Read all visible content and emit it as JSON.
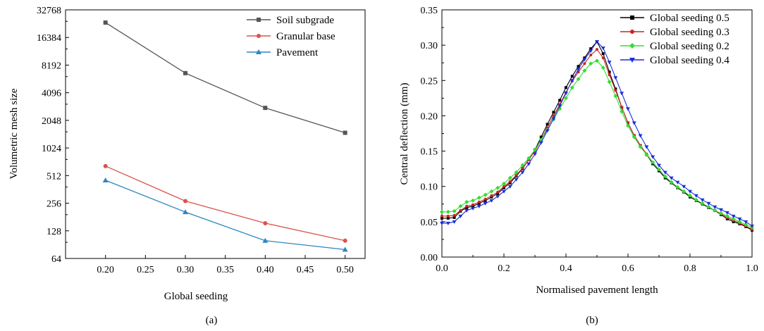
{
  "chart_data": [
    {
      "type": "line",
      "caption": "(a)",
      "xlabel": "Global seeding",
      "ylabel": "Volumetric mesh size",
      "xlim": [
        0.15,
        0.525
      ],
      "ylim": [
        64,
        32768
      ],
      "yscale": "log2",
      "grid": false,
      "legend_position": "top-right",
      "x_ticks": [
        "0.20",
        "0.25",
        "0.30",
        "0.35",
        "0.40",
        "0.45",
        "0.50"
      ],
      "x_tick_values": [
        0.2,
        0.25,
        0.3,
        0.35,
        0.4,
        0.45,
        0.5
      ],
      "y_ticks": [
        "64",
        "128",
        "256",
        "512",
        "1024",
        "2048",
        "4096",
        "8192",
        "16384",
        "32768"
      ],
      "y_tick_values": [
        64,
        128,
        256,
        512,
        1024,
        2048,
        4096,
        8192,
        16384,
        32768
      ],
      "x": [
        0.2,
        0.3,
        0.4,
        0.5
      ],
      "series": [
        {
          "name": "Soil subgrade",
          "color": "#555555",
          "marker": "square",
          "values": [
            23800,
            6700,
            2800,
            1500
          ]
        },
        {
          "name": "Granular base",
          "color": "#d9534f",
          "marker": "circle",
          "values": [
            650,
            270,
            155,
            100
          ]
        },
        {
          "name": "Pavement",
          "color": "#2e86c1",
          "marker": "triangle",
          "values": [
            455,
            205,
            100,
            80
          ]
        }
      ]
    },
    {
      "type": "line",
      "caption": "(b)",
      "xlabel": "Normalised pavement length",
      "ylabel": "Central deflection (mm)",
      "xlim": [
        0,
        1
      ],
      "ylim": [
        0,
        0.35
      ],
      "grid": false,
      "legend_position": "top-right",
      "x_ticks": [
        "0.0",
        "0.2",
        "0.4",
        "0.6",
        "0.8",
        "1.0"
      ],
      "x_tick_values": [
        0,
        0.2,
        0.4,
        0.6,
        0.8,
        1.0
      ],
      "y_ticks": [
        "0.00",
        "0.05",
        "0.10",
        "0.15",
        "0.20",
        "0.25",
        "0.30",
        "0.35"
      ],
      "y_tick_values": [
        0,
        0.05,
        0.1,
        0.15,
        0.2,
        0.25,
        0.3,
        0.35
      ],
      "series": [
        {
          "name": "Global seeding 0.5",
          "color": "#000000",
          "marker": "square",
          "x": [
            0.0,
            0.02,
            0.04,
            0.06,
            0.08,
            0.1,
            0.12,
            0.14,
            0.16,
            0.18,
            0.2,
            0.22,
            0.24,
            0.26,
            0.28,
            0.3,
            0.32,
            0.34,
            0.36,
            0.38,
            0.4,
            0.42,
            0.44,
            0.46,
            0.48,
            0.5,
            0.52,
            0.54,
            0.56,
            0.58,
            0.6,
            0.62,
            0.64,
            0.66,
            0.68,
            0.7,
            0.72,
            0.74,
            0.76,
            0.78,
            0.8,
            0.82,
            0.84,
            0.86,
            0.88,
            0.9,
            0.92,
            0.94,
            0.96,
            0.98,
            1.0
          ],
          "values": [
            0.055,
            0.055,
            0.056,
            0.065,
            0.07,
            0.072,
            0.076,
            0.08,
            0.085,
            0.09,
            0.098,
            0.105,
            0.115,
            0.125,
            0.138,
            0.152,
            0.17,
            0.188,
            0.205,
            0.222,
            0.24,
            0.256,
            0.27,
            0.282,
            0.295,
            0.305,
            0.288,
            0.262,
            0.238,
            0.212,
            0.19,
            0.172,
            0.158,
            0.145,
            0.132,
            0.122,
            0.112,
            0.105,
            0.098,
            0.092,
            0.085,
            0.08,
            0.075,
            0.07,
            0.066,
            0.06,
            0.054,
            0.05,
            0.047,
            0.043,
            0.038
          ]
        },
        {
          "name": "Global seeding 0.3",
          "color": "#cc2222",
          "marker": "circle",
          "x": [
            0.0,
            0.02,
            0.04,
            0.06,
            0.08,
            0.1,
            0.12,
            0.14,
            0.16,
            0.18,
            0.2,
            0.22,
            0.24,
            0.26,
            0.28,
            0.3,
            0.32,
            0.34,
            0.36,
            0.38,
            0.4,
            0.42,
            0.44,
            0.46,
            0.48,
            0.5,
            0.52,
            0.54,
            0.56,
            0.58,
            0.6,
            0.62,
            0.64,
            0.66,
            0.68,
            0.7,
            0.72,
            0.74,
            0.76,
            0.78,
            0.8,
            0.82,
            0.84,
            0.86,
            0.88,
            0.9,
            0.92,
            0.94,
            0.96,
            0.98,
            1.0
          ],
          "values": [
            0.058,
            0.058,
            0.059,
            0.066,
            0.072,
            0.074,
            0.078,
            0.082,
            0.087,
            0.092,
            0.1,
            0.107,
            0.116,
            0.126,
            0.138,
            0.15,
            0.166,
            0.183,
            0.2,
            0.216,
            0.233,
            0.249,
            0.262,
            0.274,
            0.286,
            0.294,
            0.282,
            0.258,
            0.236,
            0.212,
            0.19,
            0.172,
            0.158,
            0.146,
            0.134,
            0.124,
            0.114,
            0.106,
            0.099,
            0.093,
            0.087,
            0.081,
            0.076,
            0.071,
            0.066,
            0.061,
            0.056,
            0.052,
            0.048,
            0.044,
            0.039
          ]
        },
        {
          "name": "Global seeding 0.2",
          "color": "#33dd33",
          "marker": "diamond",
          "x": [
            0.0,
            0.02,
            0.04,
            0.06,
            0.08,
            0.1,
            0.12,
            0.14,
            0.16,
            0.18,
            0.2,
            0.22,
            0.24,
            0.26,
            0.28,
            0.3,
            0.32,
            0.34,
            0.36,
            0.38,
            0.4,
            0.42,
            0.44,
            0.46,
            0.48,
            0.5,
            0.52,
            0.54,
            0.56,
            0.58,
            0.6,
            0.62,
            0.64,
            0.66,
            0.68,
            0.7,
            0.72,
            0.74,
            0.76,
            0.78,
            0.8,
            0.82,
            0.84,
            0.86,
            0.88,
            0.9,
            0.92,
            0.94,
            0.96,
            0.98,
            1.0
          ],
          "values": [
            0.064,
            0.064,
            0.065,
            0.072,
            0.078,
            0.08,
            0.084,
            0.088,
            0.093,
            0.098,
            0.104,
            0.112,
            0.12,
            0.13,
            0.14,
            0.152,
            0.166,
            0.18,
            0.195,
            0.21,
            0.225,
            0.24,
            0.252,
            0.264,
            0.274,
            0.278,
            0.268,
            0.248,
            0.228,
            0.206,
            0.186,
            0.17,
            0.156,
            0.145,
            0.134,
            0.124,
            0.114,
            0.106,
            0.099,
            0.093,
            0.087,
            0.081,
            0.076,
            0.071,
            0.066,
            0.062,
            0.058,
            0.054,
            0.05,
            0.046,
            0.042
          ]
        },
        {
          "name": "Global seeding 0.4",
          "color": "#1a2fd6",
          "marker": "triangle-down",
          "x": [
            0.0,
            0.02,
            0.04,
            0.06,
            0.08,
            0.1,
            0.12,
            0.14,
            0.16,
            0.18,
            0.2,
            0.22,
            0.24,
            0.26,
            0.28,
            0.3,
            0.32,
            0.34,
            0.36,
            0.38,
            0.4,
            0.42,
            0.44,
            0.46,
            0.48,
            0.5,
            0.52,
            0.54,
            0.56,
            0.58,
            0.6,
            0.62,
            0.64,
            0.66,
            0.68,
            0.7,
            0.72,
            0.74,
            0.76,
            0.78,
            0.8,
            0.82,
            0.84,
            0.86,
            0.88,
            0.9,
            0.92,
            0.94,
            0.96,
            0.98,
            1.0
          ],
          "values": [
            0.048,
            0.048,
            0.05,
            0.058,
            0.066,
            0.069,
            0.072,
            0.076,
            0.08,
            0.086,
            0.093,
            0.1,
            0.11,
            0.12,
            0.132,
            0.146,
            0.162,
            0.179,
            0.196,
            0.214,
            0.232,
            0.25,
            0.266,
            0.28,
            0.292,
            0.305,
            0.296,
            0.276,
            0.254,
            0.232,
            0.21,
            0.19,
            0.172,
            0.156,
            0.142,
            0.13,
            0.12,
            0.112,
            0.106,
            0.1,
            0.093,
            0.087,
            0.081,
            0.076,
            0.071,
            0.067,
            0.063,
            0.058,
            0.054,
            0.05,
            0.044
          ]
        }
      ]
    }
  ]
}
